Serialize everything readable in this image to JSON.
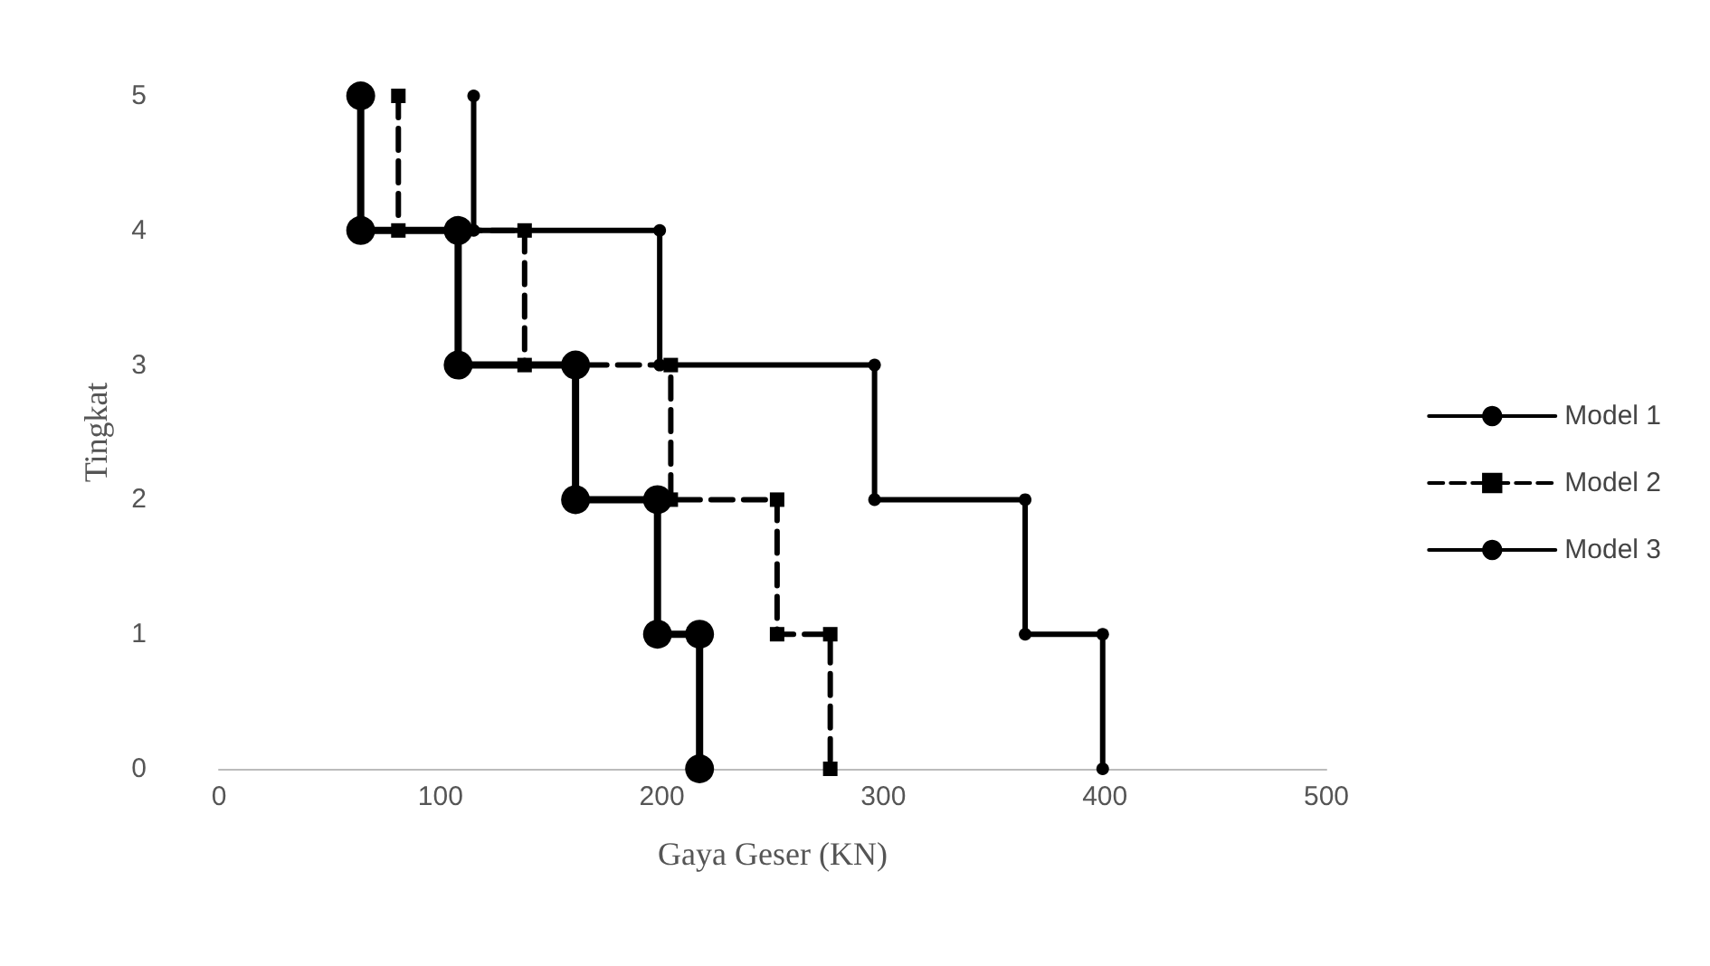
{
  "chart_data": {
    "type": "line",
    "xlabel": "Gaya Geser (KN)",
    "ylabel": "Tingkat",
    "xlim": [
      0,
      500
    ],
    "xticks": [
      0,
      100,
      200,
      300,
      400,
      500
    ],
    "ylim": [
      0,
      5
    ],
    "yticks": [
      0,
      1,
      2,
      3,
      4,
      5
    ],
    "grid": false,
    "legend": "right",
    "series": [
      {
        "name": "Model 1",
        "color": "#000000",
        "marker": "circle",
        "line_style": "solid",
        "x": [
          115,
          115,
          199,
          199,
          296,
          296,
          364,
          364,
          399,
          399
        ],
        "values": [
          5,
          4,
          4,
          3,
          3,
          2,
          2,
          1,
          1,
          0
        ]
      },
      {
        "name": "Model 2",
        "color": "#000000",
        "marker": "square",
        "line_style": "dashed",
        "x": [
          81,
          81,
          138,
          138,
          204,
          204,
          252,
          252,
          276,
          276
        ],
        "values": [
          5,
          4,
          4,
          3,
          3,
          2,
          2,
          1,
          1,
          0
        ]
      },
      {
        "name": "Model 3",
        "color": "#000000",
        "marker": "circle",
        "line_style": "solid",
        "x": [
          64,
          64,
          108,
          108,
          161,
          161,
          198,
          198,
          217,
          217
        ],
        "values": [
          5,
          4,
          4,
          3,
          3,
          2,
          2,
          1,
          1,
          0
        ]
      }
    ]
  }
}
